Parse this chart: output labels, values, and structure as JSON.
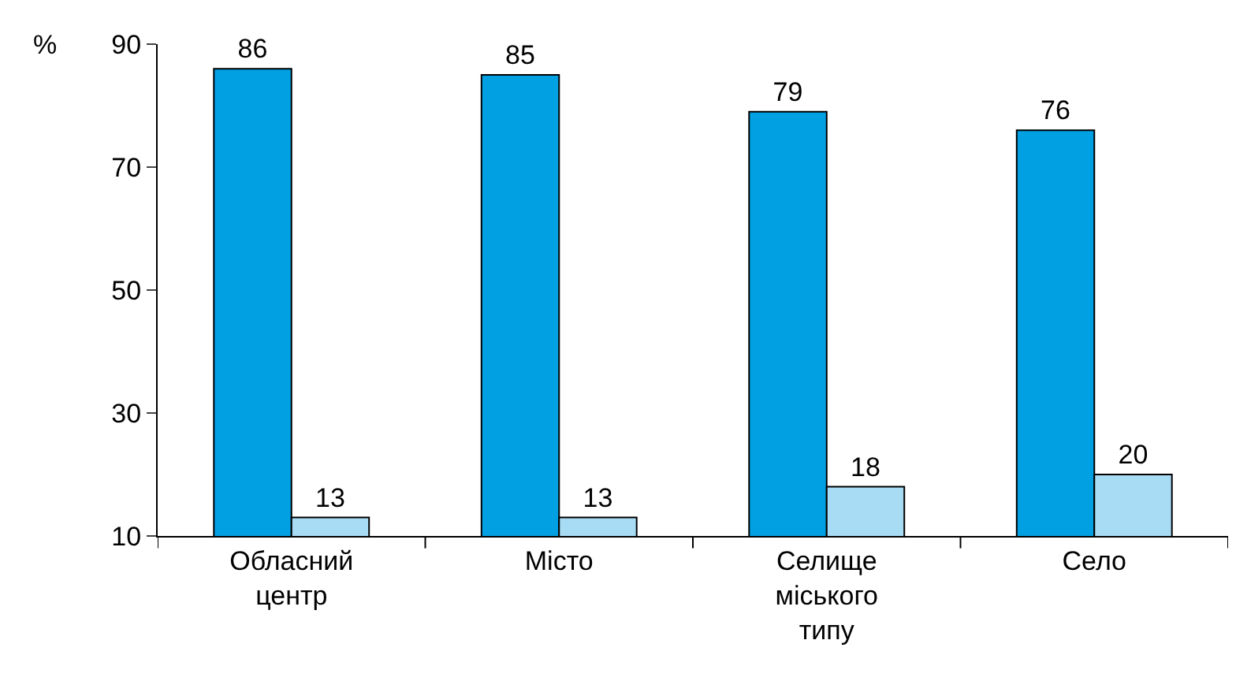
{
  "chart_data": {
    "type": "bar",
    "ylabel": "%",
    "categories": [
      "Обласний центр",
      "Місто",
      "Селище міського типу",
      "Село"
    ],
    "series": [
      {
        "color": "#00a0e3",
        "values": [
          86,
          85,
          79,
          76
        ]
      },
      {
        "color": "#a8dcf5",
        "values": [
          13,
          13,
          18,
          20
        ]
      }
    ],
    "ylim": [
      10,
      90
    ],
    "yticks": [
      10,
      30,
      50,
      70,
      90
    ],
    "data_labels": true,
    "legend": false
  }
}
